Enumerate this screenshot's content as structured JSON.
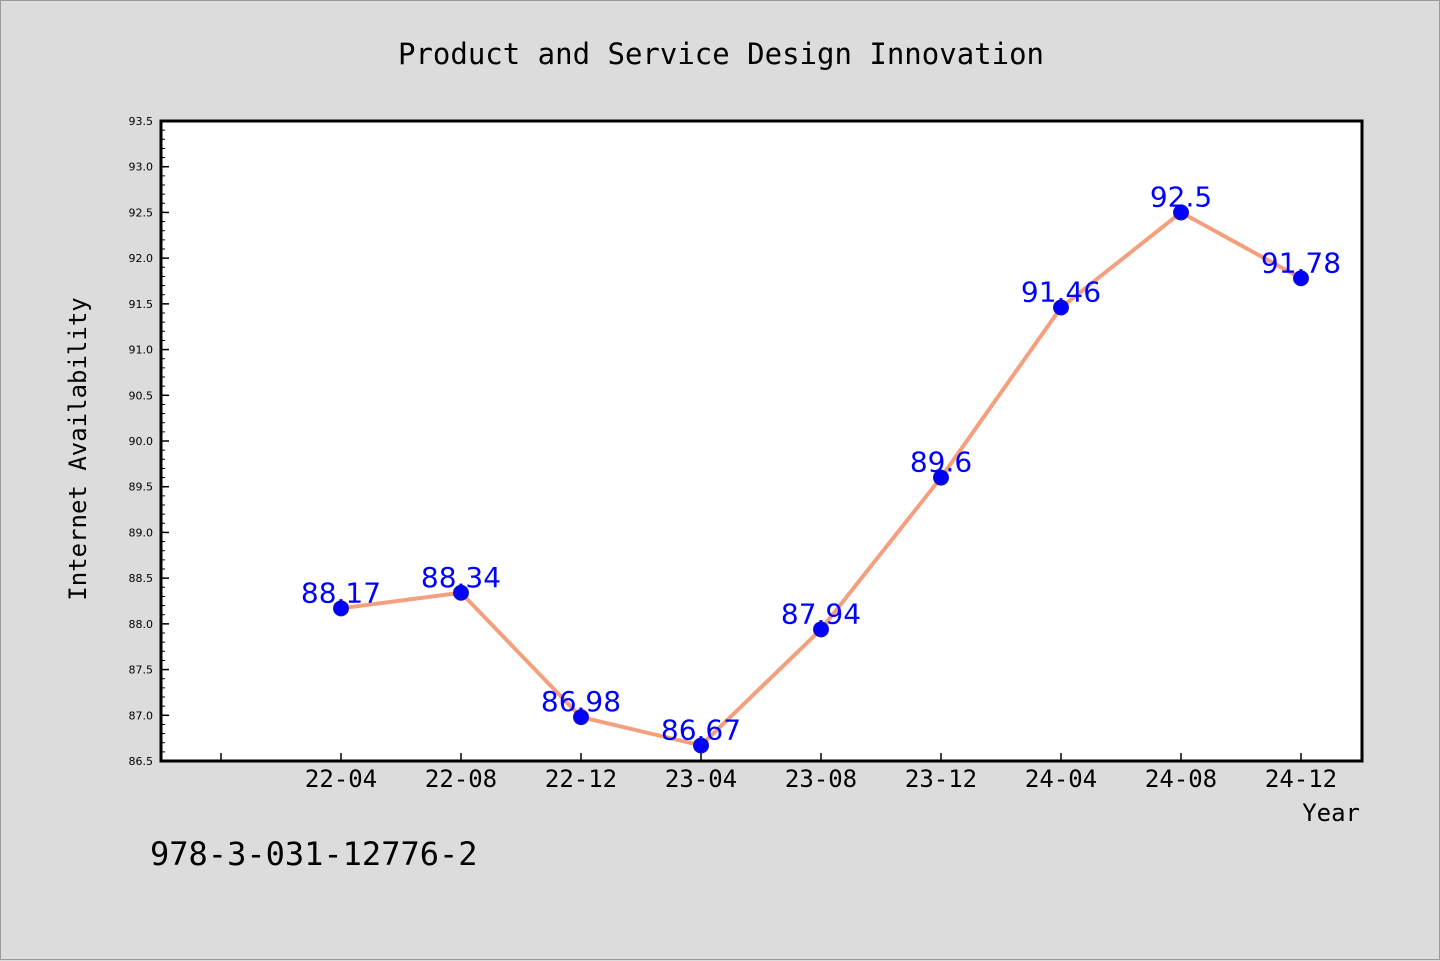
{
  "chart_data": {
    "type": "line",
    "title": "Product and Service Design Innovation",
    "xlabel": "Year",
    "ylabel": "Internet Availability",
    "categories": [
      "22-04",
      "22-08",
      "22-12",
      "23-04",
      "23-08",
      "23-12",
      "24-04",
      "24-08",
      "24-12"
    ],
    "series": [
      {
        "values": [
          88.17,
          88.34,
          86.98,
          86.67,
          87.94,
          89.6,
          91.46,
          92.5,
          91.78
        ],
        "data_labels": [
          "88.17",
          "88.34",
          "86.98",
          "86.67",
          "87.94",
          "89.6",
          "91.46",
          "92.5",
          "91.78"
        ],
        "line_color": "#f4a07e",
        "marker_color": "#0000ff",
        "label_color": "#0000ff"
      }
    ],
    "ylim": [
      86.5,
      93.5
    ],
    "yticks": [
      "86.5",
      "87.0",
      "87.5",
      "88.0",
      "88.5",
      "89.0",
      "89.5",
      "90.0",
      "90.5",
      "91.0",
      "91.5",
      "92.0",
      "92.5",
      "93.0",
      "93.5"
    ],
    "grid": false,
    "legend": "none"
  },
  "footer_text": "978-3-031-12776-2",
  "colors": {
    "background": "#dcdcdc",
    "plot_area": "#ffffff",
    "axis": "#000000"
  }
}
